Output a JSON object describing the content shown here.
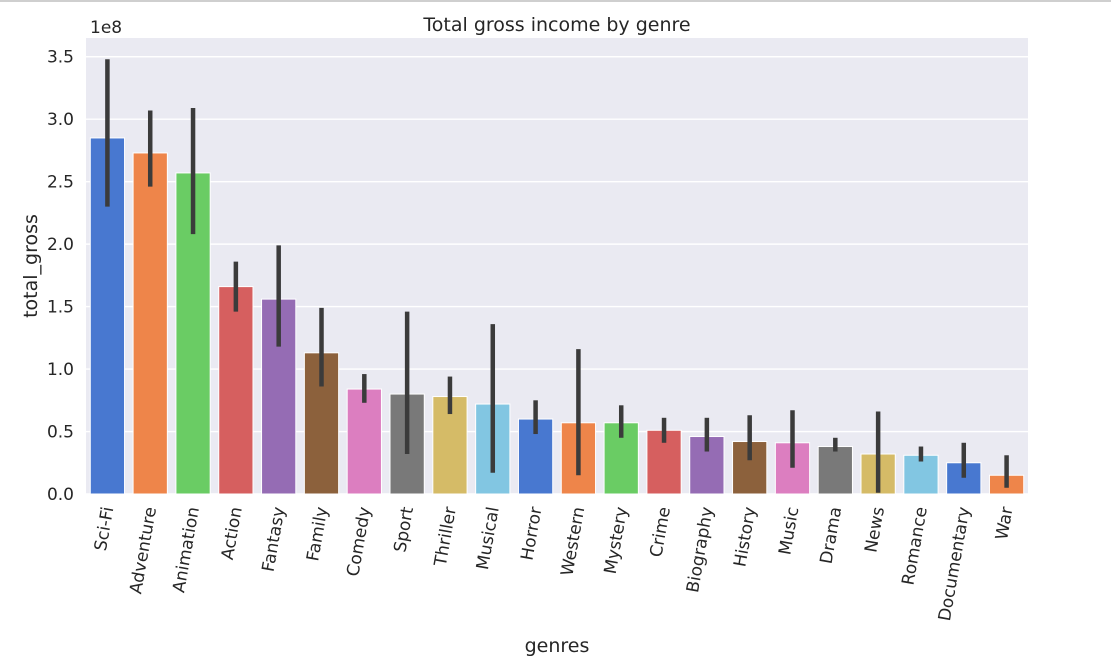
{
  "chart_data": {
    "type": "bar",
    "title": "Total gross income by genre",
    "xlabel": "genres",
    "ylabel": "total_gross",
    "offset_label": "1e8",
    "ylim": [
      0,
      3.65
    ],
    "yticks": [
      0.0,
      0.5,
      1.0,
      1.5,
      2.0,
      2.5,
      3.0,
      3.5
    ],
    "ytick_labels": [
      "0.0",
      "0.5",
      "1.0",
      "1.5",
      "2.0",
      "2.5",
      "3.0",
      "3.5"
    ],
    "value_scale": "1e8",
    "grid": true,
    "categories": [
      "Sci-Fi",
      "Adventure",
      "Animation",
      "Action",
      "Fantasy",
      "Family",
      "Comedy",
      "Sport",
      "Thriller",
      "Musical",
      "Horror",
      "Western",
      "Mystery",
      "Crime",
      "Biography",
      "History",
      "Music",
      "Drama",
      "News",
      "Romance",
      "Documentary",
      "War"
    ],
    "values": [
      2.85,
      2.73,
      2.57,
      1.66,
      1.56,
      1.13,
      0.84,
      0.8,
      0.78,
      0.72,
      0.6,
      0.57,
      0.57,
      0.51,
      0.46,
      0.42,
      0.41,
      0.38,
      0.32,
      0.31,
      0.25,
      0.15
    ],
    "error_low": [
      2.3,
      2.46,
      2.08,
      1.46,
      1.18,
      0.86,
      0.73,
      0.32,
      0.64,
      0.17,
      0.48,
      0.15,
      0.45,
      0.41,
      0.34,
      0.27,
      0.21,
      0.34,
      0.01,
      0.26,
      0.13,
      0.05
    ],
    "error_high": [
      3.48,
      3.07,
      3.09,
      1.86,
      1.99,
      1.49,
      0.96,
      1.46,
      0.94,
      1.36,
      0.75,
      1.16,
      0.71,
      0.61,
      0.61,
      0.63,
      0.67,
      0.45,
      0.66,
      0.38,
      0.41,
      0.31
    ],
    "colors": [
      "#4878d0",
      "#ee854a",
      "#6acc64",
      "#d65f5f",
      "#956cb4",
      "#8c613c",
      "#dc7ec0",
      "#797979",
      "#d5bb67",
      "#82c6e2",
      "#4878d0",
      "#ee854a",
      "#6acc64",
      "#d65f5f",
      "#956cb4",
      "#8c613c",
      "#dc7ec0",
      "#797979",
      "#d5bb67",
      "#82c6e2",
      "#4878d0",
      "#ee854a"
    ],
    "plot_background": "#eaeaf2",
    "errorbar_color": "#3b3b3b"
  }
}
